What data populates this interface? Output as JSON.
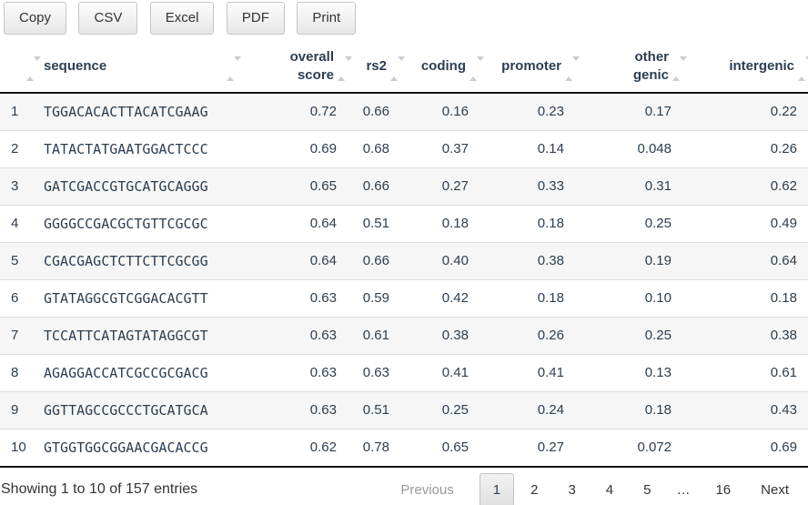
{
  "toolbar": {
    "buttons": [
      "Copy",
      "CSV",
      "Excel",
      "PDF",
      "Print"
    ]
  },
  "table": {
    "columns": [
      "",
      "sequence",
      "overall score",
      "rs2",
      "coding",
      "promoter",
      "other genic",
      "intergenic"
    ],
    "rows": [
      [
        "1",
        "TGGACACACTTACATCGAAG",
        "0.72",
        "0.66",
        "0.16",
        "0.23",
        "0.17",
        "0.22"
      ],
      [
        "2",
        "TATACTATGAATGGACTCCC",
        "0.69",
        "0.68",
        "0.37",
        "0.14",
        "0.048",
        "0.26"
      ],
      [
        "3",
        "GATCGACCGTGCATGCAGGG",
        "0.65",
        "0.66",
        "0.27",
        "0.33",
        "0.31",
        "0.62"
      ],
      [
        "4",
        "GGGGCCGACGCTGTTCGCGC",
        "0.64",
        "0.51",
        "0.18",
        "0.18",
        "0.25",
        "0.49"
      ],
      [
        "5",
        "CGACGAGCTCTTCTTCGCGG",
        "0.64",
        "0.66",
        "0.40",
        "0.38",
        "0.19",
        "0.64"
      ],
      [
        "6",
        "GTATAGGCGTCGGACACGTT",
        "0.63",
        "0.59",
        "0.42",
        "0.18",
        "0.10",
        "0.18"
      ],
      [
        "7",
        "TCCATTCATAGTATAGGCGT",
        "0.63",
        "0.61",
        "0.38",
        "0.26",
        "0.25",
        "0.38"
      ],
      [
        "8",
        "AGAGGACCATCGCCGCGACG",
        "0.63",
        "0.63",
        "0.41",
        "0.41",
        "0.13",
        "0.61"
      ],
      [
        "9",
        "GGTTAGCCGCCCTGCATGCA",
        "0.63",
        "0.51",
        "0.25",
        "0.24",
        "0.18",
        "0.43"
      ],
      [
        "10",
        "GTGGTGGCGGAACGACACCG",
        "0.62",
        "0.78",
        "0.65",
        "0.27",
        "0.072",
        "0.69"
      ]
    ]
  },
  "footer": {
    "info": "Showing 1 to 10 of 157 entries",
    "pagination": {
      "previous": "Previous",
      "pages": [
        "1",
        "2",
        "3",
        "4",
        "5"
      ],
      "ellipsis": "…",
      "last_page": "16",
      "next": "Next",
      "current_page": "1"
    }
  },
  "colors": {
    "header_text": "#2c3e50",
    "stripe_row": "#f6f6f6",
    "dark_border": "#111111",
    "disabled_text": "#999999"
  }
}
